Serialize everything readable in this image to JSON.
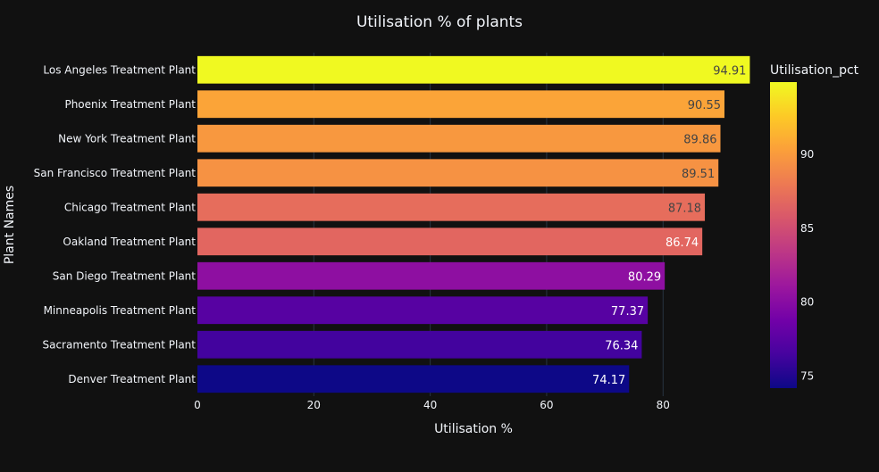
{
  "chart_data": {
    "type": "bar",
    "orientation": "horizontal",
    "title": "Utilisation % of plants",
    "xlabel": "Utilisation %",
    "ylabel": "Plant Names",
    "xlim": [
      0,
      95
    ],
    "x_ticks": [
      0,
      20,
      40,
      60,
      80
    ],
    "grid": true,
    "categories": [
      "Los Angeles Treatment Plant",
      "Phoenix Treatment Plant",
      "New York Treatment Plant",
      "San Francisco Treatment Plant",
      "Chicago Treatment Plant",
      "Oakland Treatment Plant",
      "San Diego Treatment Plant",
      "Minneapolis Treatment Plant",
      "Sacramento Treatment Plant",
      "Denver Treatment Plant"
    ],
    "values": [
      94.91,
      90.55,
      89.86,
      89.51,
      87.18,
      86.74,
      80.29,
      77.37,
      76.34,
      74.17
    ],
    "value_labels": [
      "94.91",
      "90.55",
      "89.86",
      "89.51",
      "87.18",
      "86.74",
      "80.29",
      "77.37",
      "76.34",
      "74.17"
    ],
    "colorbar": {
      "title": "Utilisation_pct",
      "range": [
        74.17,
        94.91
      ],
      "ticks": [
        75,
        80,
        85,
        90
      ],
      "colorscale": "plasma",
      "placement": "right"
    }
  },
  "colors": {
    "background": "#111111",
    "grid": "#283442",
    "text": "#f2f5fa",
    "plasma": [
      "#0d0887",
      "#46039f",
      "#7201a8",
      "#9c179e",
      "#bd3786",
      "#d8576b",
      "#ed7953",
      "#fb9f3a",
      "#fdca26",
      "#f0f921"
    ]
  }
}
